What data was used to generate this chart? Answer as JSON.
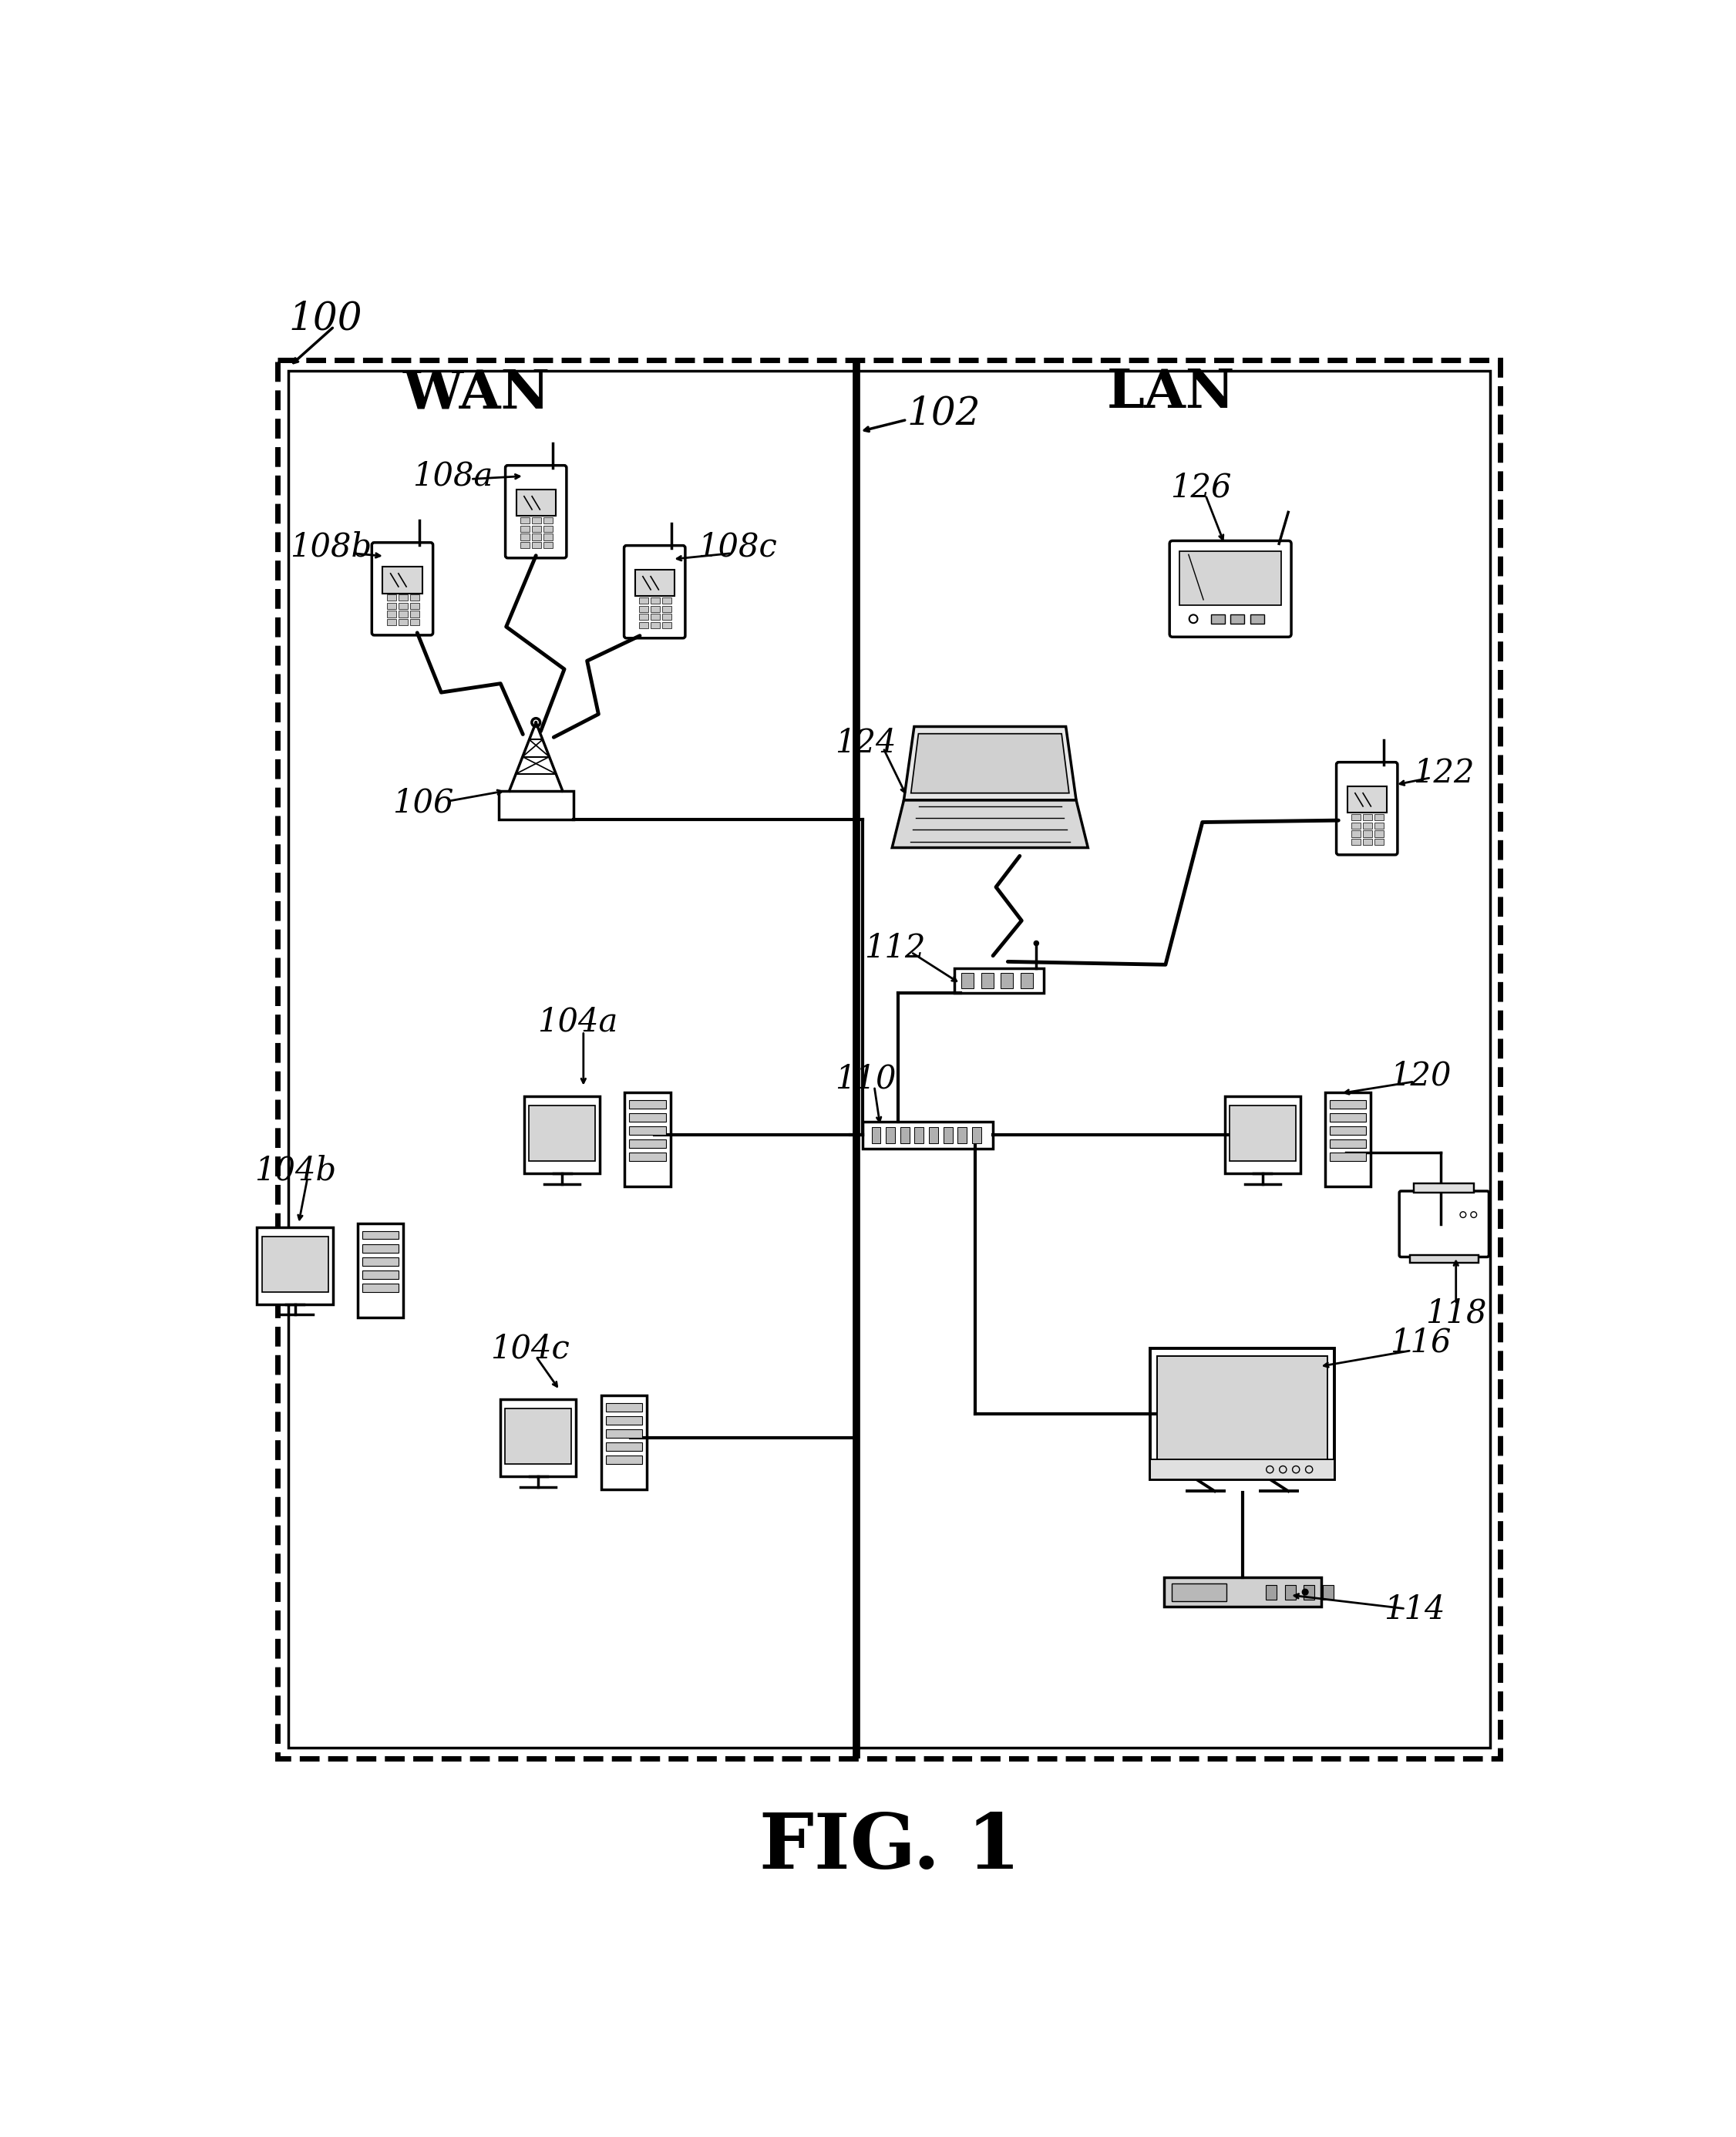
{
  "fig_label": "FIG. 1",
  "bg_color": "#ffffff",
  "wan_label": "WAN",
  "lan_label": "LAN",
  "label_100": "100",
  "label_102": "102",
  "label_104a": "104a",
  "label_104b": "104b",
  "label_104c": "104c",
  "label_106": "106",
  "label_108a": "108a",
  "label_108b": "108b",
  "label_108c": "108c",
  "label_110": "110",
  "label_112": "112",
  "label_114": "114",
  "label_116": "116",
  "label_118": "118",
  "label_120": "120",
  "label_122": "122",
  "label_124": "124",
  "label_126": "126"
}
